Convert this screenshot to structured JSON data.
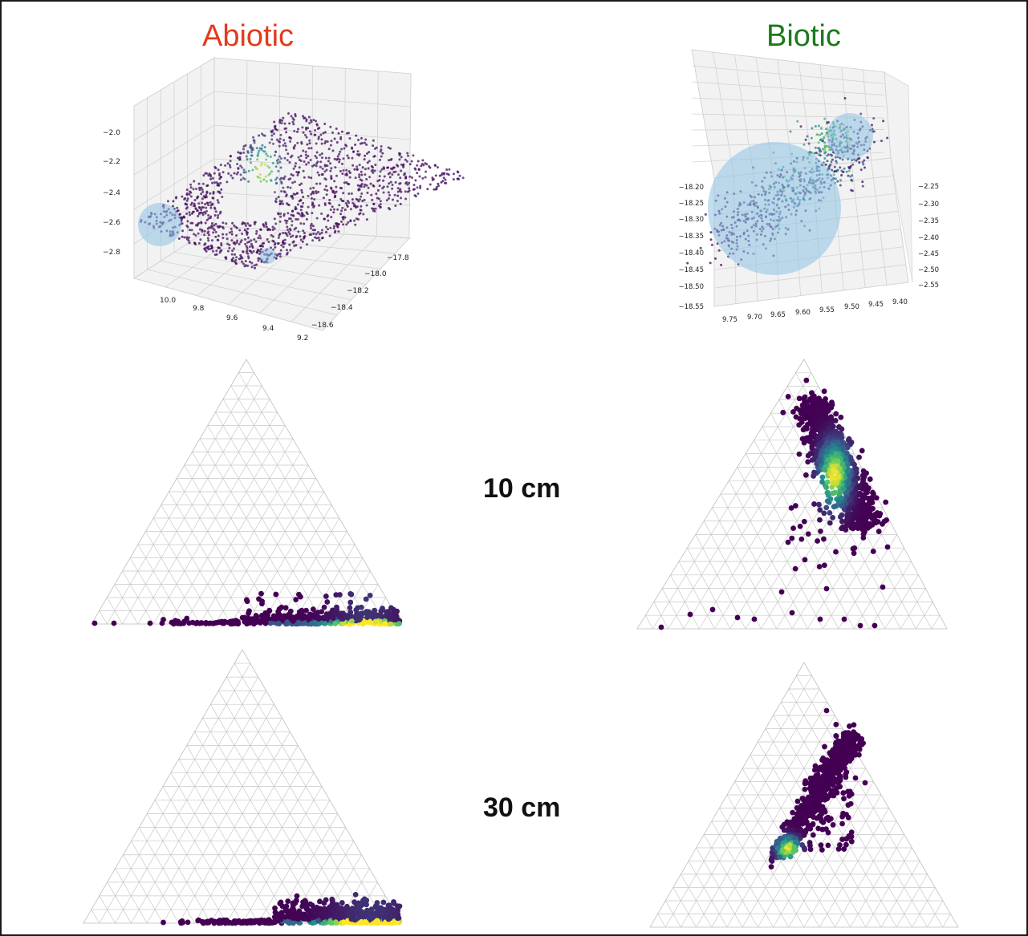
{
  "columns": {
    "abiotic": "Abiotic",
    "biotic": "Biotic"
  },
  "rows": {
    "r1": "10 cm",
    "r2": "30 cm"
  },
  "colors": {
    "abiotic_title": "#e23b1c",
    "biotic_title": "#1c7a1c",
    "sphere": "#8ec3e6",
    "grid": "#c8c8c8",
    "viridis_low": "#440154",
    "viridis_mid": "#21918c",
    "viridis_high": "#fde725"
  },
  "chart_data": [
    {
      "type": "scatter",
      "panel": "abiotic-3d",
      "projection": "3d",
      "x_ticks": [
        "10.0",
        "9.8",
        "9.6",
        "9.4",
        "9.2"
      ],
      "y_ticks": [
        "−17.8",
        "−18.0",
        "−18.2",
        "−18.4",
        "−18.6"
      ],
      "z_ticks": [
        "−2.0",
        "−2.2",
        "−2.4",
        "−2.6",
        "−2.8"
      ],
      "colormap": "viridis",
      "spheres": 2
    },
    {
      "type": "scatter",
      "panel": "biotic-3d",
      "projection": "3d",
      "x_ticks": [
        "9.75",
        "9.70",
        "9.65",
        "9.60",
        "9.55",
        "9.50",
        "9.45",
        "9.40"
      ],
      "y_ticks": [
        "−18.20",
        "−18.25",
        "−18.30",
        "−18.35",
        "−18.40",
        "−18.45",
        "−18.50",
        "−18.55"
      ],
      "z_ticks": [
        "−2.25",
        "−2.30",
        "−2.35",
        "−2.40",
        "−2.45",
        "−2.50",
        "−2.55"
      ],
      "colormap": "viridis",
      "spheres": 2
    },
    {
      "type": "scatter",
      "panel": "abiotic-ternary-10cm",
      "projection": "ternary",
      "distribution": "along bottom edge, density peak near right corner"
    },
    {
      "type": "scatter",
      "panel": "biotic-ternary-10cm",
      "projection": "ternary",
      "distribution": "upper-right interior band, density peak near center-right"
    },
    {
      "type": "scatter",
      "panel": "abiotic-ternary-30cm",
      "projection": "ternary",
      "distribution": "along bottom edge, density peak near right corner"
    },
    {
      "type": "scatter",
      "panel": "biotic-ternary-30cm",
      "projection": "ternary",
      "distribution": "diagonal band in lower-middle, density peak at lower-left end"
    }
  ]
}
